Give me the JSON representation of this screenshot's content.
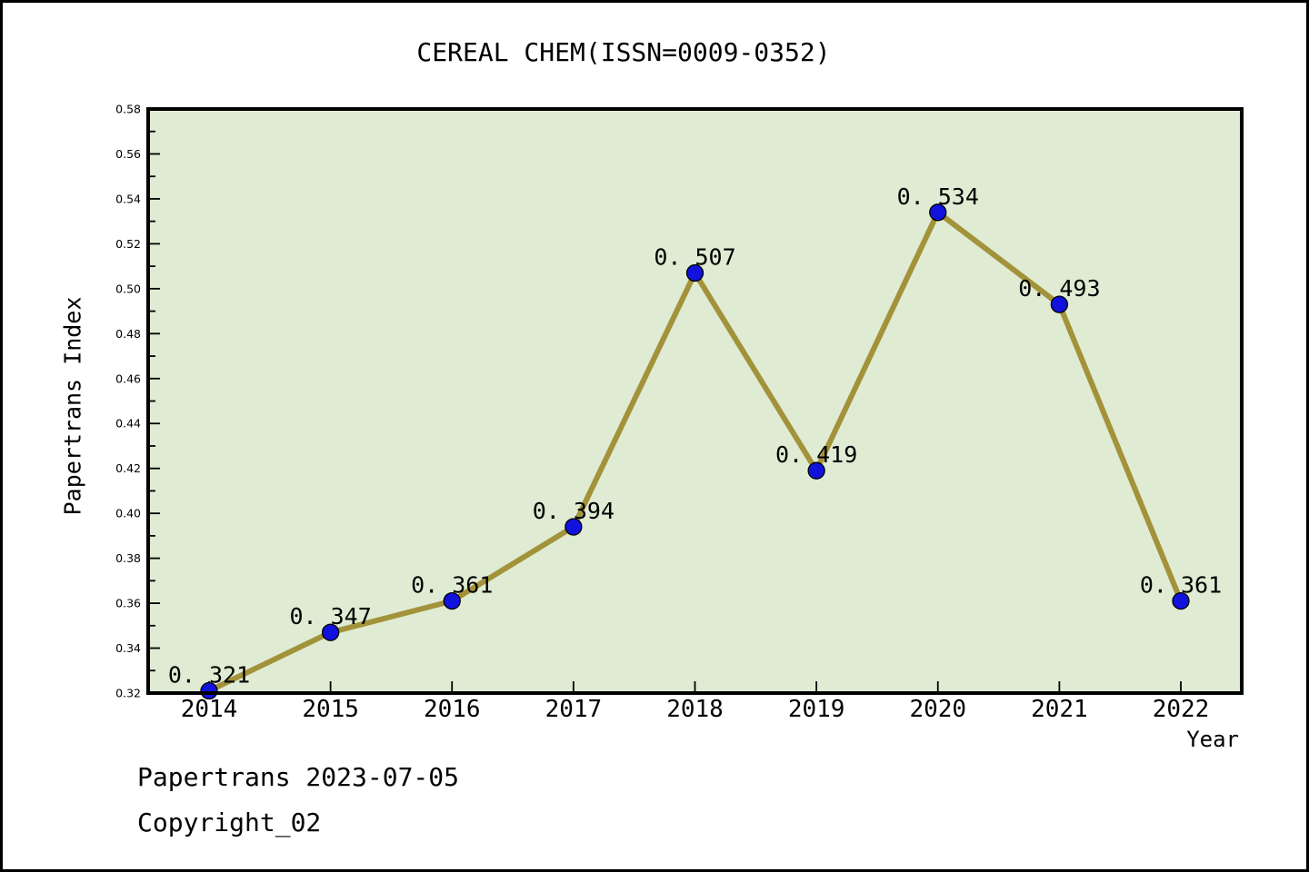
{
  "chart_data": {
    "type": "line",
    "title": "CEREAL CHEM(ISSN=0009-0352)",
    "xlabel": "Year",
    "ylabel": "Papertrans Index",
    "categories": [
      "2014",
      "2015",
      "2016",
      "2017",
      "2018",
      "2019",
      "2020",
      "2021",
      "2022"
    ],
    "series": [
      {
        "name": "Papertrans Index",
        "values": [
          0.321,
          0.347,
          0.361,
          0.394,
          0.507,
          0.419,
          0.534,
          0.493,
          0.361
        ],
        "point_labels": [
          "0. 321",
          "0. 347",
          "0. 361",
          "0. 394",
          "0. 507",
          "0. 419",
          "0. 534",
          "0. 493",
          "0. 361"
        ]
      }
    ],
    "ylim": [
      0.32,
      0.58
    ],
    "y_major_step": 0.02,
    "y_minor_step": 0.01,
    "y_tick_labels": [
      "0.32",
      "0.34",
      "0.36",
      "0.38",
      "0.40",
      "0.42",
      "0.44",
      "0.46",
      "0.48",
      "0.50",
      "0.52",
      "0.54",
      "0.56",
      "0.58"
    ],
    "grid": "off",
    "legend": "none",
    "colors": {
      "plot_bg": "#dfecd3",
      "line": "#a2923a",
      "marker": "#1212dd",
      "marker_edge": "#000000",
      "axis": "#000000",
      "text": "#000000",
      "figure_bg": "#ffffff"
    }
  },
  "footer": {
    "line1": "Papertrans 2023-07-05",
    "line2": "Copyright_02"
  }
}
